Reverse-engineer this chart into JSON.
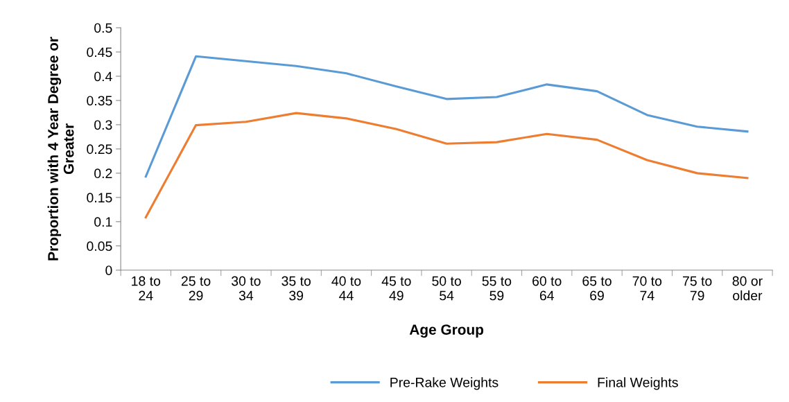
{
  "chart_data": {
    "type": "line",
    "xlabel": "Age Group",
    "ylabel": "Proportion with 4 Year Degree or Greater",
    "categories": [
      "18 to 24",
      "25 to 29",
      "30 to 34",
      "35 to 39",
      "40 to 44",
      "45 to 49",
      "50 to 54",
      "55 to 59",
      "60 to 64",
      "65 to 69",
      "70 to 74",
      "75 to 79",
      "80 or older"
    ],
    "series": [
      {
        "name": "Pre-Rake Weights",
        "color": "#5b9bd5",
        "values": [
          0.193,
          0.441,
          0.431,
          0.421,
          0.406,
          0.379,
          0.353,
          0.357,
          0.383,
          0.369,
          0.32,
          0.296,
          0.286
        ]
      },
      {
        "name": "Final Weights",
        "color": "#ed7d31",
        "values": [
          0.109,
          0.299,
          0.306,
          0.324,
          0.313,
          0.291,
          0.261,
          0.264,
          0.281,
          0.269,
          0.227,
          0.2,
          0.19
        ]
      }
    ],
    "ylim": [
      0,
      0.5
    ],
    "yticks": [
      0,
      0.05,
      0.1,
      0.15,
      0.2,
      0.25,
      0.3,
      0.35,
      0.4,
      0.45,
      0.5
    ],
    "grid": false,
    "legend": "bottom",
    "marker": "none",
    "line_style": "solid"
  }
}
